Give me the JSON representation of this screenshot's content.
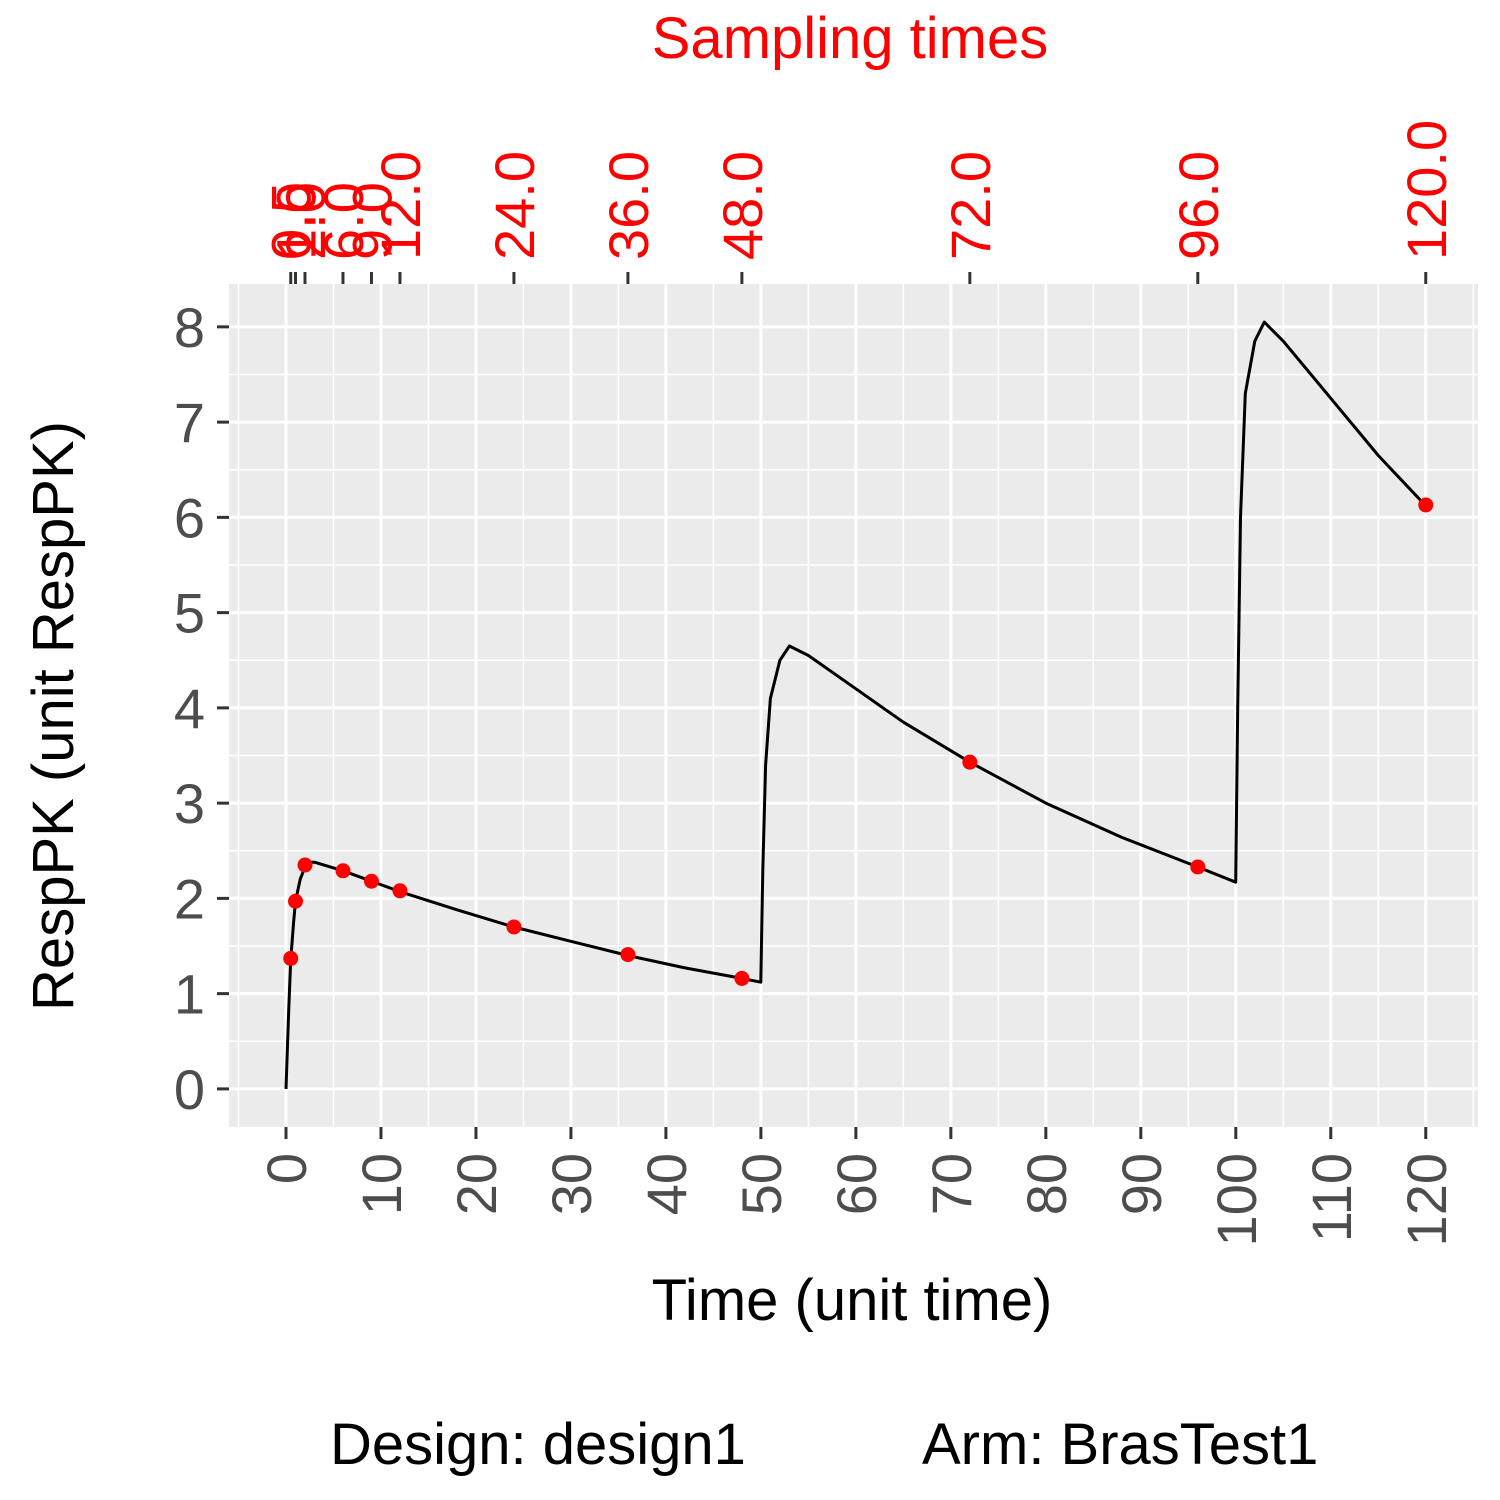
{
  "chart_data": {
    "type": "line",
    "title": "",
    "secondary_title": "Sampling times",
    "xlabel": "Time (unit time)",
    "ylabel": "RespPK (unit RespPK)",
    "xlim": [
      -6,
      125.5
    ],
    "ylim": [
      -0.4,
      8.45
    ],
    "x_ticks": [
      0,
      10,
      20,
      30,
      40,
      50,
      60,
      70,
      80,
      90,
      100,
      110,
      120
    ],
    "y_ticks": [
      0,
      1,
      2,
      3,
      4,
      5,
      6,
      7,
      8
    ],
    "x_tick_labels": [
      "0",
      "10",
      "20",
      "30",
      "40",
      "50",
      "60",
      "70",
      "80",
      "90",
      "100",
      "110",
      "120"
    ],
    "y_tick_labels": [
      "0",
      "1",
      "2",
      "3",
      "4",
      "5",
      "6",
      "7",
      "8"
    ],
    "grid": true,
    "curve": {
      "name": "RespPK",
      "color": "#000000",
      "x": [
        0,
        0.3,
        0.5,
        0.8,
        1,
        1.5,
        2,
        2.5,
        3,
        6,
        9,
        12,
        18,
        24,
        30,
        36,
        42,
        48,
        49.99,
        50.2,
        50.5,
        51,
        52,
        53,
        55,
        60,
        65,
        72,
        80,
        88,
        96,
        99.99,
        100.2,
        100.5,
        101,
        102,
        103,
        105,
        110,
        115,
        120
      ],
      "y": [
        0,
        0.85,
        1.35,
        1.75,
        1.97,
        2.2,
        2.33,
        2.38,
        2.38,
        2.29,
        2.18,
        2.07,
        1.88,
        1.7,
        1.55,
        1.4,
        1.27,
        1.16,
        1.12,
        2.3,
        3.4,
        4.1,
        4.5,
        4.65,
        4.55,
        4.2,
        3.85,
        3.43,
        3.0,
        2.64,
        2.33,
        2.17,
        4.0,
        6.0,
        7.3,
        7.85,
        8.05,
        7.85,
        7.25,
        6.65,
        6.12
      ]
    },
    "sampling_points": {
      "color": "#ff0000",
      "x": [
        0.5,
        1,
        2,
        6,
        9,
        12,
        24,
        36,
        48,
        72,
        96,
        120
      ],
      "y": [
        1.37,
        1.97,
        2.35,
        2.29,
        2.18,
        2.08,
        1.7,
        1.41,
        1.16,
        3.43,
        2.33,
        6.13
      ]
    },
    "top_ticks": [
      0.5,
      1,
      2,
      6,
      9,
      12,
      24,
      36,
      48,
      72,
      96,
      120
    ],
    "top_tick_labels": [
      "0.5",
      "1.0",
      "2.0",
      "6.0",
      "9.0",
      "12.0",
      "24.0",
      "36.0",
      "48.0",
      "72.0",
      "96.0",
      "120.0"
    ],
    "panel_color": "#ebebeb",
    "grid_color": "#ffffff"
  },
  "caption": {
    "design": "Design: design1",
    "arm": "Arm: BrasTest1"
  }
}
